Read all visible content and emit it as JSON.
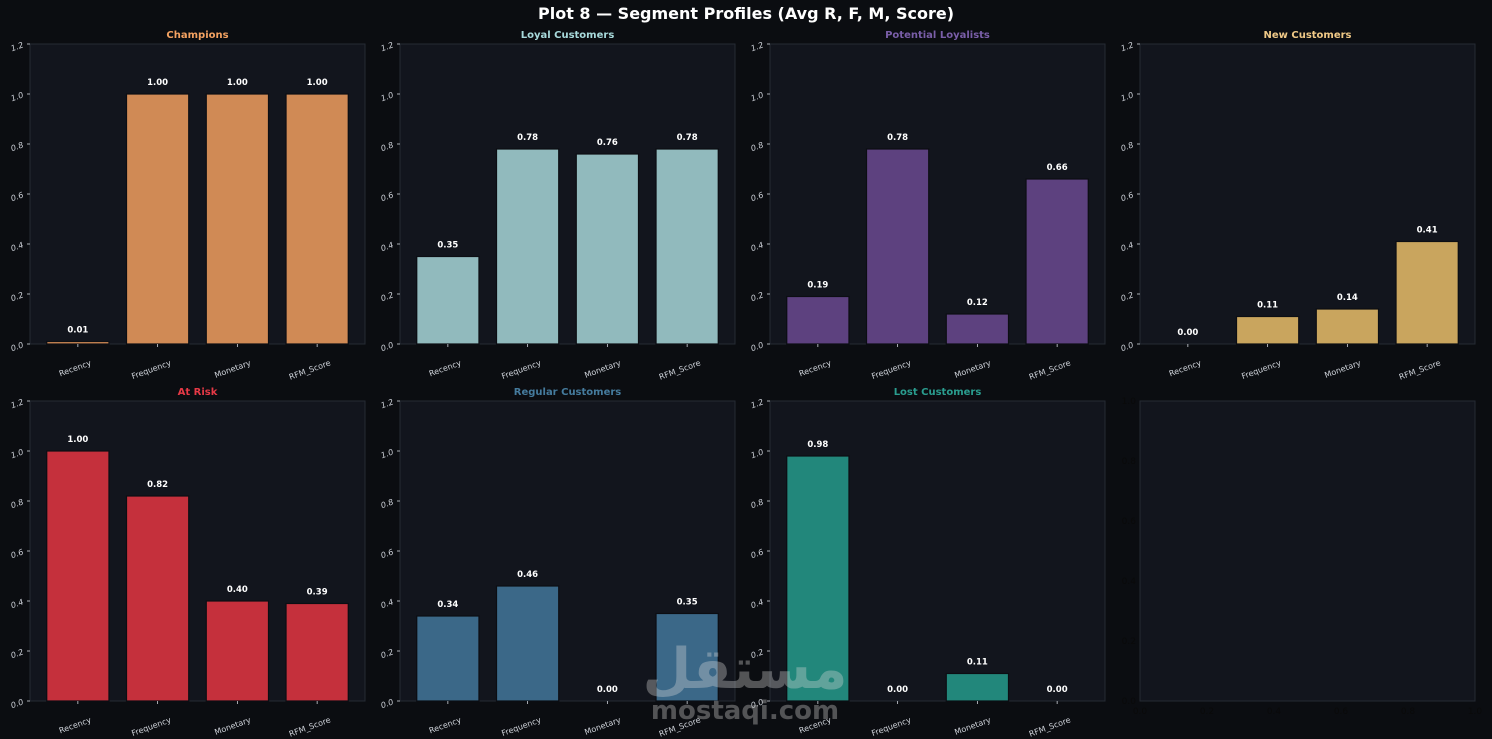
{
  "figure": {
    "title": "Plot 8 — Segment Profiles (Avg R, F, M, Score)",
    "background": "#0b0d11",
    "panel_background": "#12151d",
    "tick_color": "#cfd3da"
  },
  "chart_data": [
    {
      "type": "bar",
      "title": "Champions",
      "title_color": "#f4a261",
      "bar_color": "#d08a55",
      "categories": [
        "Recency",
        "Frequency",
        "Monetary",
        "RFM_Score"
      ],
      "values": [
        0.01,
        1.0,
        1.0,
        1.0
      ],
      "labels": [
        "0.01",
        "1.00",
        "1.00",
        "1.00"
      ],
      "ylim": [
        0,
        1.2
      ],
      "yticks": [
        "0.0",
        "0.2",
        "0.4",
        "0.6",
        "0.8",
        "1.0",
        "1.2"
      ]
    },
    {
      "type": "bar",
      "title": "Loyal Customers",
      "title_color": "#a8dadc",
      "bar_color": "#91babd",
      "categories": [
        "Recency",
        "Frequency",
        "Monetary",
        "RFM_Score"
      ],
      "values": [
        0.35,
        0.78,
        0.76,
        0.78
      ],
      "labels": [
        "0.35",
        "0.78",
        "0.76",
        "0.78"
      ],
      "ylim": [
        0,
        1.2
      ],
      "yticks": [
        "0.0",
        "0.2",
        "0.4",
        "0.6",
        "0.8",
        "1.0",
        "1.2"
      ]
    },
    {
      "type": "bar",
      "title": "Potential Loyalists",
      "title_color": "#7a5ea8",
      "bar_color": "#5d417f",
      "categories": [
        "Recency",
        "Frequency",
        "Monetary",
        "RFM_Score"
      ],
      "values": [
        0.19,
        0.78,
        0.12,
        0.66
      ],
      "labels": [
        "0.19",
        "0.78",
        "0.12",
        "0.66"
      ],
      "ylim": [
        0,
        1.2
      ],
      "yticks": [
        "0.0",
        "0.2",
        "0.4",
        "0.6",
        "0.8",
        "1.0",
        "1.2"
      ]
    },
    {
      "type": "bar",
      "title": "New Customers",
      "title_color": "#f0c987",
      "bar_color": "#c9a55e",
      "categories": [
        "Recency",
        "Frequency",
        "Monetary",
        "RFM_Score"
      ],
      "values": [
        0.0,
        0.11,
        0.14,
        0.41
      ],
      "labels": [
        "0.00",
        "0.11",
        "0.14",
        "0.41"
      ],
      "ylim": [
        0,
        1.2
      ],
      "yticks": [
        "0.0",
        "0.2",
        "0.4",
        "0.6",
        "0.8",
        "1.0",
        "1.2"
      ]
    },
    {
      "type": "bar",
      "title": "At Risk",
      "title_color": "#e63946",
      "bar_color": "#c5303c",
      "categories": [
        "Recency",
        "Frequency",
        "Monetary",
        "RFM_Score"
      ],
      "values": [
        1.0,
        0.82,
        0.4,
        0.39
      ],
      "labels": [
        "1.00",
        "0.82",
        "0.40",
        "0.39"
      ],
      "ylim": [
        0,
        1.2
      ],
      "yticks": [
        "0.0",
        "0.2",
        "0.4",
        "0.6",
        "0.8",
        "1.0",
        "1.2"
      ]
    },
    {
      "type": "bar",
      "title": "Regular Customers",
      "title_color": "#457b9d",
      "bar_color": "#3b6888",
      "categories": [
        "Recency",
        "Frequency",
        "Monetary",
        "RFM_Score"
      ],
      "values": [
        0.34,
        0.46,
        0.0,
        0.35
      ],
      "labels": [
        "0.34",
        "0.46",
        "0.00",
        "0.35"
      ],
      "ylim": [
        0,
        1.2
      ],
      "yticks": [
        "0.0",
        "0.2",
        "0.4",
        "0.6",
        "0.8",
        "1.0",
        "1.2"
      ]
    },
    {
      "type": "bar",
      "title": "Lost Customers",
      "title_color": "#2a9d8f",
      "bar_color": "#22877b",
      "categories": [
        "Recency",
        "Frequency",
        "Monetary",
        "RFM_Score"
      ],
      "values": [
        0.98,
        0.0,
        0.11,
        0.0
      ],
      "labels": [
        "0.98",
        "0.00",
        "0.11",
        "0.00"
      ],
      "ylim": [
        0,
        1.2
      ],
      "yticks": [
        "0.0",
        "0.2",
        "0.4",
        "0.6",
        "0.8",
        "1.0",
        "1.2"
      ]
    },
    {
      "type": "bar",
      "title": "",
      "empty": true,
      "xticks": [
        "0.0",
        "0.2",
        "0.4",
        "0.6",
        "0.8",
        "1.0"
      ],
      "yticks": [
        "0.0",
        "0.2",
        "0.4",
        "0.6",
        "0.8",
        "1.0"
      ]
    }
  ],
  "watermark": {
    "arabic": "مستقل",
    "latin": "mostaqi.com"
  }
}
